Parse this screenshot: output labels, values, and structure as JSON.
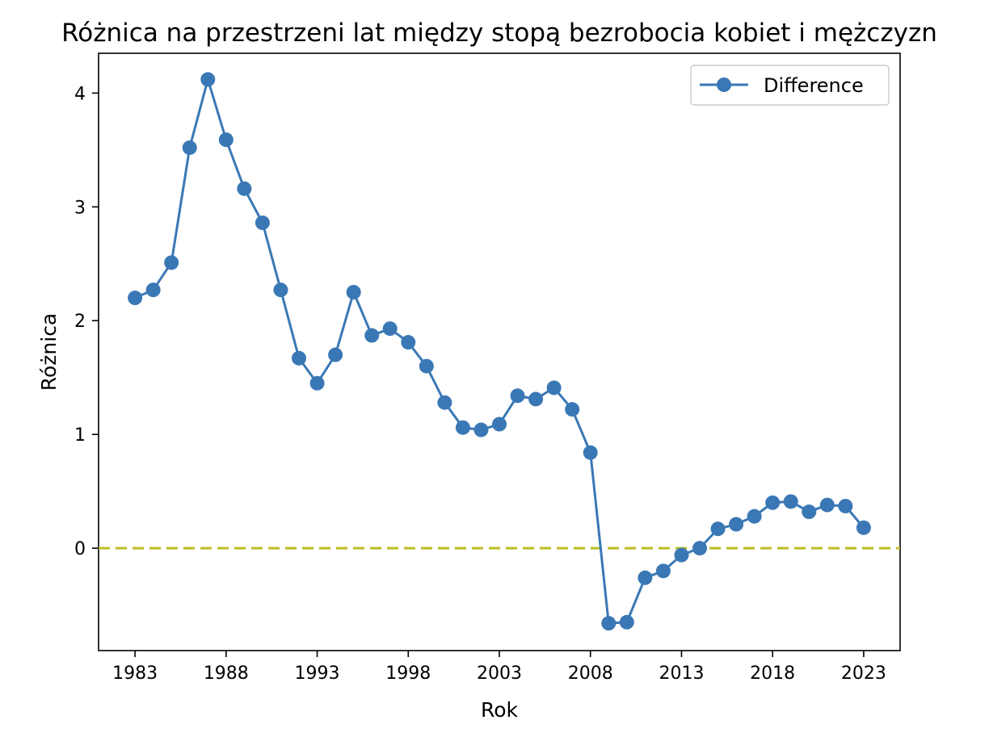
{
  "chart_data": {
    "type": "line",
    "title": "Różnica na przestrzeni lat między stopą bezrobocia kobiet i mężczyzn",
    "xlabel": "Rok",
    "ylabel": "Różnica",
    "xlim": [
      1981,
      2025
    ],
    "ylim": [
      -0.9,
      4.35
    ],
    "x_ticks": [
      1983,
      1988,
      1993,
      1998,
      2003,
      2008,
      2013,
      2018,
      2023
    ],
    "y_ticks": [
      0,
      1,
      2,
      3,
      4
    ],
    "grid": false,
    "legend_position": "top-right",
    "reference_line": {
      "y": 0,
      "style": "dashed",
      "color": "#bcbd22"
    },
    "colors": {
      "series": "#3a78b5"
    },
    "series": [
      {
        "name": "Difference",
        "x": [
          1983,
          1984,
          1985,
          1986,
          1987,
          1988,
          1989,
          1990,
          1991,
          1992,
          1993,
          1994,
          1995,
          1996,
          1997,
          1998,
          1999,
          2000,
          2001,
          2002,
          2003,
          2004,
          2005,
          2006,
          2007,
          2008,
          2009,
          2010,
          2011,
          2012,
          2013,
          2014,
          2015,
          2016,
          2017,
          2018,
          2019,
          2020,
          2021,
          2022,
          2023
        ],
        "y": [
          2.2,
          2.27,
          2.51,
          3.52,
          4.12,
          3.59,
          3.16,
          2.86,
          2.27,
          1.67,
          1.45,
          1.7,
          2.25,
          1.87,
          1.93,
          1.81,
          1.6,
          1.28,
          1.06,
          1.04,
          1.09,
          1.34,
          1.31,
          1.41,
          1.22,
          0.84,
          -0.66,
          -0.65,
          -0.26,
          -0.2,
          -0.06,
          0.0,
          0.17,
          0.21,
          0.28,
          0.4,
          0.41,
          0.32,
          0.38,
          0.37,
          0.18
        ]
      }
    ]
  }
}
